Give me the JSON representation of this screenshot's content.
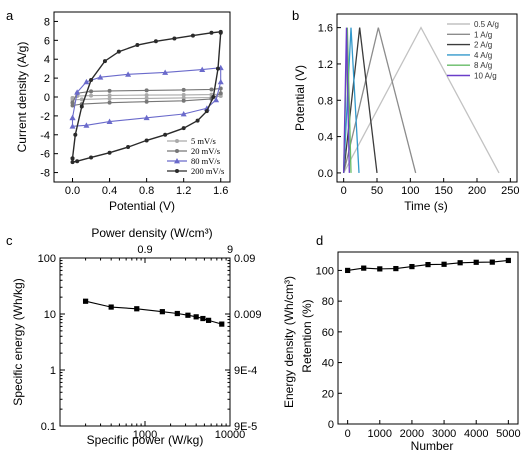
{
  "chart_data": [
    {
      "id": "a",
      "panel_label": "a",
      "type": "line",
      "title": "",
      "xlabel": "Potential (V)",
      "ylabel": "Current density (A/g)",
      "xlim": [
        -0.2,
        1.7
      ],
      "ylim": [
        -9,
        9
      ],
      "xticks": [
        "0.0",
        "0.4",
        "0.8",
        "1.2",
        "1.6"
      ],
      "yticks": [
        "-8",
        "-6",
        "-4",
        "-2",
        "0",
        "2",
        "4",
        "6",
        "8"
      ],
      "legend_position": "lower-right",
      "series": [
        {
          "name": "5 mV/s",
          "color": "#aaaaaa",
          "upper": [
            [
              0.0,
              -0.1
            ],
            [
              0.05,
              0.1
            ],
            [
              0.2,
              0.15
            ],
            [
              0.4,
              0.17
            ],
            [
              0.8,
              0.2
            ],
            [
              1.2,
              0.22
            ],
            [
              1.5,
              0.25
            ],
            [
              1.6,
              0.3
            ]
          ],
          "lower": [
            [
              1.6,
              0.1
            ],
            [
              1.5,
              -0.05
            ],
            [
              1.2,
              -0.1
            ],
            [
              0.8,
              -0.15
            ],
            [
              0.4,
              -0.18
            ],
            [
              0.1,
              -0.25
            ],
            [
              0.0,
              -0.3
            ]
          ]
        },
        {
          "name": "20 mV/s",
          "color": "#777777",
          "upper": [
            [
              0.0,
              -0.6
            ],
            [
              0.05,
              0.4
            ],
            [
              0.2,
              0.6
            ],
            [
              0.4,
              0.65
            ],
            [
              0.8,
              0.7
            ],
            [
              1.2,
              0.75
            ],
            [
              1.5,
              0.8
            ],
            [
              1.6,
              0.9
            ]
          ],
          "lower": [
            [
              1.6,
              0.4
            ],
            [
              1.5,
              -0.2
            ],
            [
              1.2,
              -0.4
            ],
            [
              0.8,
              -0.5
            ],
            [
              0.4,
              -0.6
            ],
            [
              0.1,
              -0.75
            ],
            [
              0.0,
              -0.9
            ]
          ]
        },
        {
          "name": "80 mV/s",
          "color": "#6a6acb",
          "upper": [
            [
              0.0,
              -2.2
            ],
            [
              0.05,
              0.5
            ],
            [
              0.15,
              1.6
            ],
            [
              0.3,
              2.1
            ],
            [
              0.6,
              2.4
            ],
            [
              1.0,
              2.6
            ],
            [
              1.4,
              2.9
            ],
            [
              1.6,
              3.1
            ]
          ],
          "lower": [
            [
              1.6,
              1.6
            ],
            [
              1.55,
              -0.3
            ],
            [
              1.45,
              -1.2
            ],
            [
              1.2,
              -1.8
            ],
            [
              0.8,
              -2.2
            ],
            [
              0.4,
              -2.6
            ],
            [
              0.15,
              -3.0
            ],
            [
              0.0,
              -3.1
            ]
          ]
        },
        {
          "name": "200 mV/s",
          "color": "#2a2a2a",
          "upper": [
            [
              0.0,
              -6.5
            ],
            [
              0.03,
              -4.0
            ],
            [
              0.1,
              -1.0
            ],
            [
              0.2,
              1.8
            ],
            [
              0.35,
              3.8
            ],
            [
              0.5,
              4.8
            ],
            [
              0.7,
              5.5
            ],
            [
              0.9,
              5.9
            ],
            [
              1.1,
              6.2
            ],
            [
              1.3,
              6.5
            ],
            [
              1.5,
              6.8
            ],
            [
              1.6,
              6.9
            ]
          ],
          "lower": [
            [
              1.6,
              6.8
            ],
            [
              1.57,
              3.0
            ],
            [
              1.52,
              0.0
            ],
            [
              1.45,
              -1.5
            ],
            [
              1.35,
              -2.5
            ],
            [
              1.2,
              -3.3
            ],
            [
              1.0,
              -4.0
            ],
            [
              0.8,
              -4.6
            ],
            [
              0.6,
              -5.3
            ],
            [
              0.4,
              -5.9
            ],
            [
              0.2,
              -6.4
            ],
            [
              0.05,
              -6.8
            ],
            [
              0.0,
              -6.9
            ]
          ]
        }
      ]
    },
    {
      "id": "b",
      "panel_label": "b",
      "type": "line",
      "title": "",
      "xlabel": "Time (s)",
      "ylabel": "Potential (V)",
      "xlim": [
        -10,
        260
      ],
      "ylim": [
        -0.1,
        1.75
      ],
      "xticks": [
        "0",
        "50",
        "100",
        "150",
        "200",
        "250"
      ],
      "yticks": [
        "0.0",
        "0.4",
        "0.8",
        "1.2",
        "1.6"
      ],
      "legend_position": "top-right",
      "series": [
        {
          "name": "0.5 A/g",
          "color": "#c2c2c2",
          "peak_time": 116,
          "end_time": 233
        },
        {
          "name": "1 A/g",
          "color": "#8c8c8c",
          "peak_time": 52,
          "end_time": 108
        },
        {
          "name": "2 A/g",
          "color": "#3c3c3c",
          "peak_time": 24,
          "end_time": 50
        },
        {
          "name": "4 A/g",
          "color": "#3399cc",
          "peak_time": 11,
          "end_time": 23
        },
        {
          "name": "8 A/g",
          "color": "#66bb66",
          "peak_time": 5.5,
          "end_time": 11
        },
        {
          "name": "10 A/g",
          "color": "#6a3dc9",
          "peak_time": 4.2,
          "end_time": 8.5
        }
      ]
    },
    {
      "id": "c",
      "panel_label": "c",
      "type": "line",
      "title": "",
      "xlabel": "Specific power (W/kg)",
      "ylabel": "Specific energy (Wh/kg)",
      "ylabel_right": "Energy density (Wh/cm³)",
      "xlabel_top": "Power density (W/cm³)",
      "x_scale": "log",
      "y_scale": "log",
      "xlim": [
        100,
        10000
      ],
      "ylim": [
        0.1,
        100
      ],
      "xticks": [
        "1000",
        "10000"
      ],
      "yticks": [
        "0.1",
        "1",
        "10",
        "100"
      ],
      "yticks_right": [
        "9E-5",
        "9E-4",
        "0.009",
        "0.09"
      ],
      "xticks_top": [
        "0.9",
        "9"
      ],
      "x": [
        200,
        400,
        800,
        1600,
        2400,
        3200,
        4000,
        4800,
        5600,
        8000
      ],
      "y": [
        16.9,
        13.3,
        12.4,
        11.0,
        10.2,
        9.5,
        8.9,
        8.3,
        7.7,
        6.6
      ]
    },
    {
      "id": "d",
      "panel_label": "d",
      "type": "line",
      "title": "",
      "xlabel": "Number",
      "ylabel": "Retention (%)",
      "xlim": [
        -300,
        5300
      ],
      "ylim": [
        0,
        112
      ],
      "xticks": [
        "0",
        "1000",
        "2000",
        "3000",
        "4000",
        "5000"
      ],
      "yticks": [
        "0",
        "20",
        "40",
        "60",
        "80",
        "100"
      ],
      "x": [
        0,
        500,
        1000,
        1500,
        2000,
        2500,
        3000,
        3500,
        4000,
        4500,
        5000
      ],
      "y": [
        100.0,
        101.5,
        101.0,
        101.2,
        102.5,
        103.8,
        104.0,
        105.0,
        105.3,
        105.4,
        106.5
      ]
    }
  ]
}
